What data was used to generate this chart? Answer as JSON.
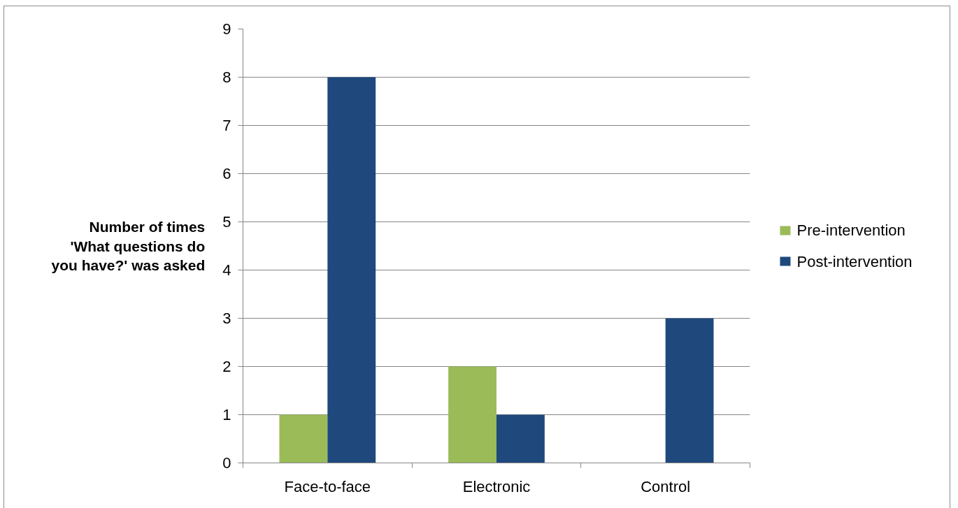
{
  "chart_data": {
    "type": "bar",
    "ylabel": "Number of times 'What questions do you have?' was asked",
    "categories": [
      "Face-to-face",
      "Electronic",
      "Control"
    ],
    "series": [
      {
        "name": "Pre-intervention",
        "color": "#9bbb59",
        "values": [
          1,
          2,
          0
        ]
      },
      {
        "name": "Post-intervention",
        "color": "#1f497d",
        "values": [
          8,
          1,
          3
        ]
      }
    ],
    "ylim": [
      0,
      9
    ],
    "yticks": [
      0,
      1,
      2,
      3,
      4,
      5,
      6,
      7,
      8,
      9
    ],
    "grid": "y",
    "legend": "right"
  }
}
